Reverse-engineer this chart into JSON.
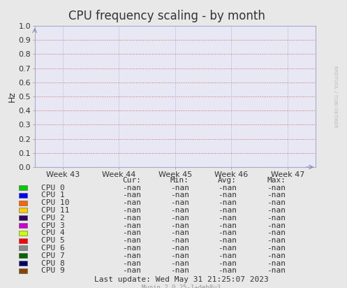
{
  "title": "CPU frequency scaling - by month",
  "ylabel": "Hz",
  "x_tick_labels": [
    "Week 43",
    "Week 44",
    "Week 45",
    "Week 46",
    "Week 47"
  ],
  "y_ticks": [
    0.0,
    0.1,
    0.2,
    0.3,
    0.4,
    0.5,
    0.6,
    0.7,
    0.8,
    0.9,
    1.0
  ],
  "ylim": [
    0.0,
    1.0
  ],
  "bg_color": "#e8e8e8",
  "plot_bg_color": "#e8e8f4",
  "h_grid_color": "#cc6666",
  "v_grid_color": "#aaaacc",
  "right_label": "RRDTOOL / TOBI OETIKER",
  "cpus": [
    {
      "name": "CPU 0",
      "color": "#00cc00"
    },
    {
      "name": "CPU 1",
      "color": "#0000ff"
    },
    {
      "name": "CPU 10",
      "color": "#ff6600"
    },
    {
      "name": "CPU 11",
      "color": "#ffcc00"
    },
    {
      "name": "CPU 2",
      "color": "#330066"
    },
    {
      "name": "CPU 3",
      "color": "#cc00cc"
    },
    {
      "name": "CPU 4",
      "color": "#ccff00"
    },
    {
      "name": "CPU 5",
      "color": "#ff0000"
    },
    {
      "name": "CPU 6",
      "color": "#888888"
    },
    {
      "name": "CPU 7",
      "color": "#006600"
    },
    {
      "name": "CPU 8",
      "color": "#000066"
    },
    {
      "name": "CPU 9",
      "color": "#884400"
    }
  ],
  "legend_headers": [
    "Cur:",
    "Min:",
    "Avg:",
    "Max:"
  ],
  "nan_value": "-nan",
  "last_update": "Last update: Wed May 31 21:25:07 2023",
  "footer": "Munin 2.0.25-1+deb8u3",
  "title_fontsize": 12,
  "axis_fontsize": 8,
  "legend_fontsize": 8
}
